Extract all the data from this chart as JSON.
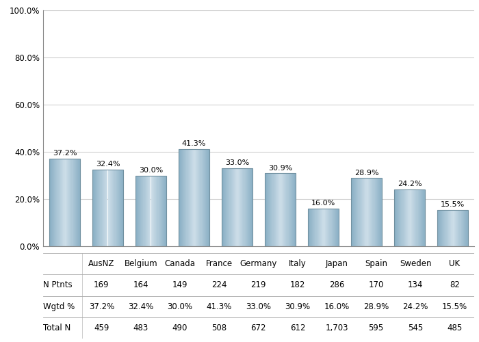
{
  "categories": [
    "AusNZ",
    "Belgium",
    "Canada",
    "France",
    "Germany",
    "Italy",
    "Japan",
    "Spain",
    "Sweden",
    "UK"
  ],
  "values": [
    37.2,
    32.4,
    30.0,
    41.3,
    33.0,
    30.9,
    16.0,
    28.9,
    24.2,
    15.5
  ],
  "n_ptnts": [
    "169",
    "164",
    "149",
    "224",
    "219",
    "182",
    "286",
    "170",
    "134",
    "82"
  ],
  "wgtd_pct": [
    "37.2%",
    "32.4%",
    "30.0%",
    "41.3%",
    "33.0%",
    "30.9%",
    "16.0%",
    "28.9%",
    "24.2%",
    "15.5%"
  ],
  "total_n": [
    "459",
    "483",
    "490",
    "508",
    "672",
    "612",
    "1,703",
    "595",
    "545",
    "485"
  ],
  "ylim": [
    0,
    100
  ],
  "yticks": [
    0,
    20,
    40,
    60,
    80,
    100
  ],
  "ytick_labels": [
    "0.0%",
    "20.0%",
    "40.0%",
    "60.0%",
    "80.0%",
    "100.0%"
  ],
  "bar_base_color": "#b0c8d8",
  "bar_edge_color": "#7090a0",
  "background_color": "#ffffff",
  "grid_color": "#d0d0d0",
  "tick_fontsize": 8.5,
  "table_fontsize": 8.5,
  "value_label_fontsize": 8.0,
  "row_labels": [
    "N Ptnts",
    "Wgtd %",
    "Total N"
  ]
}
